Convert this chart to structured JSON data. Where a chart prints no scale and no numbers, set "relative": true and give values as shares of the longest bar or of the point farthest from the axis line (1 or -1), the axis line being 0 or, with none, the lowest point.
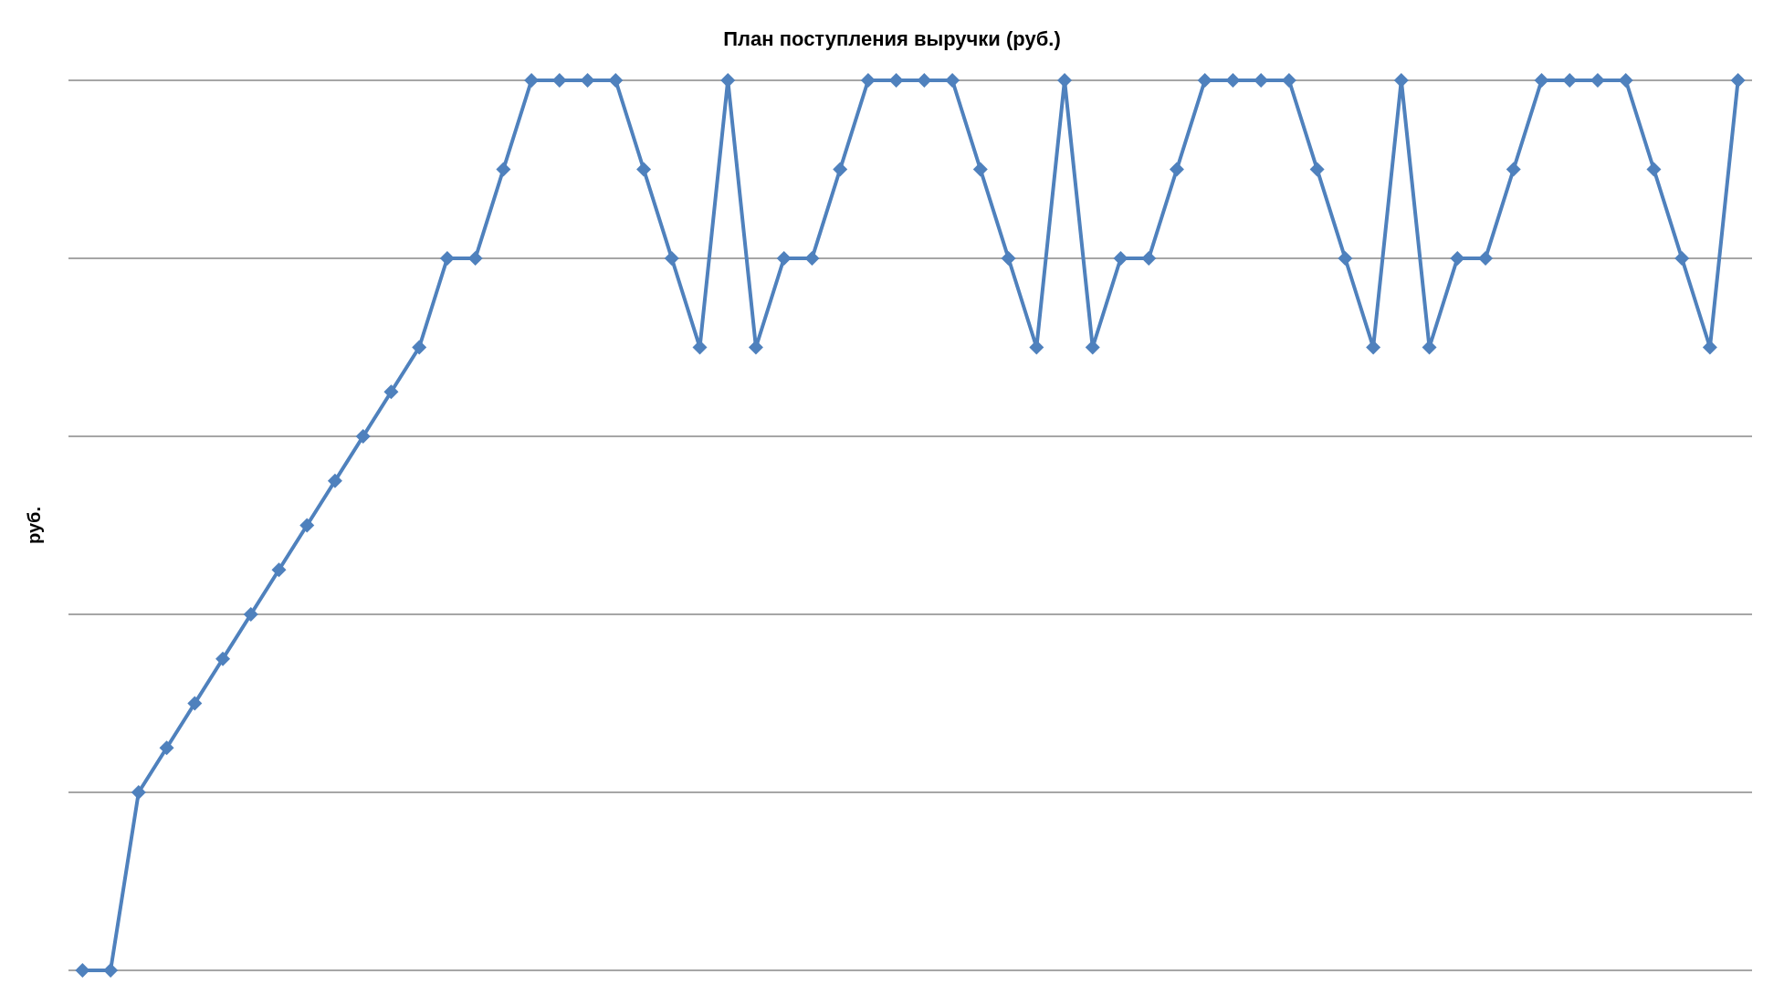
{
  "chart_data": {
    "type": "line",
    "title": "План поступления выручки (руб.)",
    "ylabel": "руб.",
    "relative": true,
    "grid": "y",
    "marker": "diamond",
    "line_style": "solid",
    "categories": [
      null,
      null,
      null,
      null,
      null,
      null,
      null,
      null,
      null,
      null,
      null,
      null,
      null,
      null,
      null,
      null,
      null,
      null,
      null,
      null,
      null,
      null,
      null,
      null,
      null,
      null,
      null,
      null,
      null,
      null,
      null,
      null,
      null,
      null,
      null,
      null,
      null,
      null,
      null,
      null,
      null,
      null,
      null,
      null,
      null,
      null,
      null,
      null,
      null,
      null,
      null,
      null,
      null,
      null,
      null,
      null,
      null,
      null,
      null,
      null
    ],
    "series": [
      {
        "color": "#4f81bd",
        "values": [
          0,
          0,
          0.2,
          0.25,
          0.3,
          0.35,
          0.4,
          0.45,
          0.5,
          0.55,
          0.6,
          0.65,
          0.7,
          0.8,
          0.8,
          0.9,
          1,
          1,
          1,
          1,
          0.9,
          0.8,
          0.7,
          1,
          0.7,
          0.8,
          0.8,
          0.9,
          1,
          1,
          1,
          1,
          0.9,
          0.8,
          0.7,
          1,
          0.7,
          0.8,
          0.8,
          0.9,
          1,
          1,
          1,
          1,
          0.9,
          0.8,
          0.7,
          1,
          0.7,
          0.8,
          0.8,
          0.9,
          1,
          1,
          1,
          1,
          0.9,
          0.8,
          0.7,
          1
        ]
      }
    ]
  }
}
